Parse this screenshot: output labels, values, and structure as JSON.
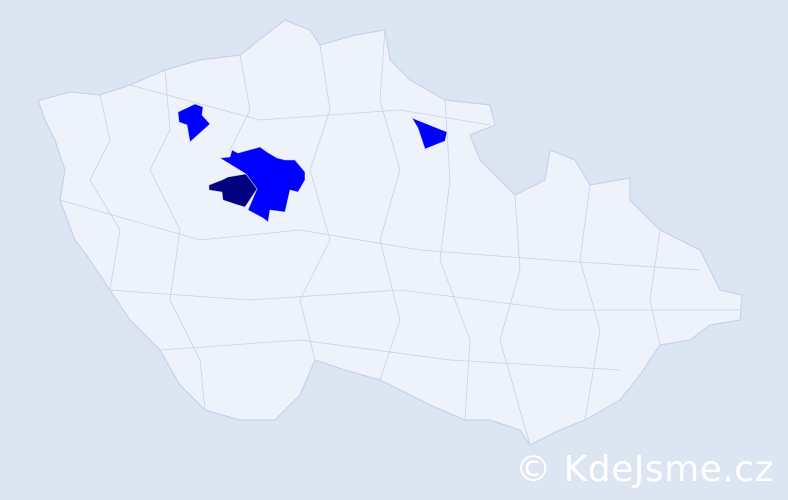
{
  "map": {
    "colors": {
      "background": "#dce5f2",
      "region_default": "#eef2fa",
      "border": "#c5cde8",
      "highlight_medium": "#0000ff",
      "highlight_high": "#000080"
    },
    "highlighted_regions": [
      {
        "level": "medium"
      },
      {
        "level": "medium"
      },
      {
        "level": "medium"
      },
      {
        "level": "high"
      }
    ]
  },
  "watermark": {
    "text": "© KdeJsme.cz"
  }
}
